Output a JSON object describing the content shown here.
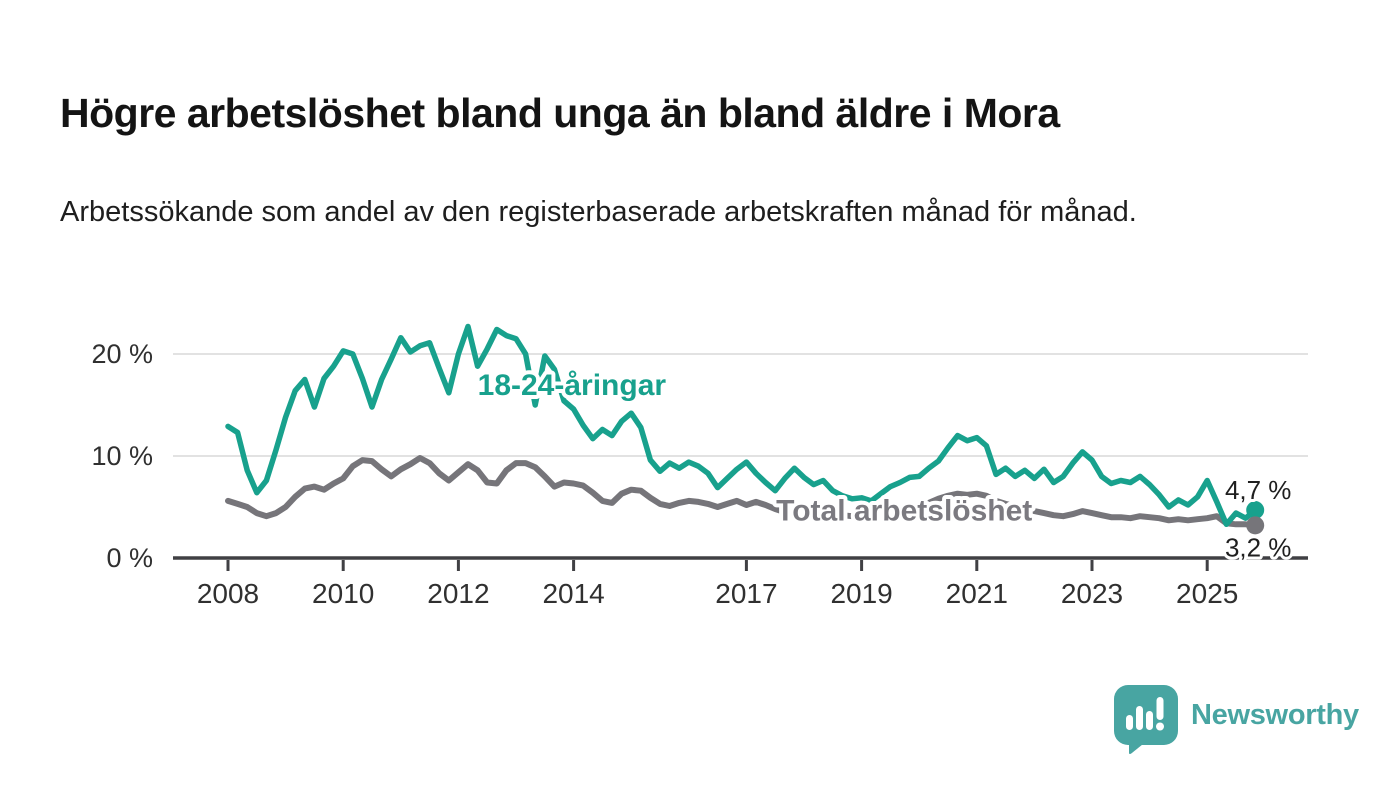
{
  "header": {
    "title": "Högre arbetslöshet bland unga än bland äldre i Mora",
    "subtitle": "Arbetssökande som andel av den registerbaserade arbetskraften månad för månad."
  },
  "chart_data": {
    "type": "line",
    "unit": "%",
    "x_start_year": 2008,
    "x_step_months": 2,
    "x_end_approx": "2025-10",
    "ylim": [
      0,
      24
    ],
    "grid": "horizontal",
    "gridline_color": "#d8d8d8",
    "axis_color": "#404044",
    "tick_label_color": "#303030",
    "y_ticks": [
      {
        "value": 0,
        "label": "0 %"
      },
      {
        "value": 10,
        "label": "10 %"
      },
      {
        "value": 20,
        "label": "20 %"
      }
    ],
    "x_ticks": [
      {
        "year": 2008,
        "label": "2008"
      },
      {
        "year": 2010,
        "label": "2010"
      },
      {
        "year": 2012,
        "label": "2012"
      },
      {
        "year": 2014,
        "label": "2014"
      },
      {
        "year": 2017,
        "label": "2017"
      },
      {
        "year": 2019,
        "label": "2019"
      },
      {
        "year": 2021,
        "label": "2021"
      },
      {
        "year": 2023,
        "label": "2023"
      },
      {
        "year": 2025,
        "label": "2025"
      }
    ],
    "series": [
      {
        "name": "18-24-åringar",
        "color": "#18a18d",
        "line_width": 5.5,
        "end_value": 4.7,
        "end_value_label": "4,7 %",
        "values": [
          12.9,
          12.3,
          8.6,
          6.4,
          7.6,
          10.6,
          13.8,
          16.4,
          17.5,
          14.8,
          17.6,
          18.8,
          20.3,
          20.0,
          17.6,
          14.8,
          17.5,
          19.5,
          21.6,
          20.2,
          20.8,
          21.1,
          18.6,
          16.2,
          20.0,
          22.7,
          18.8,
          20.5,
          22.4,
          21.8,
          21.5,
          20.0,
          15.0,
          19.8,
          18.5,
          15.4,
          14.6,
          13.0,
          11.7,
          12.6,
          12.0,
          13.4,
          14.2,
          12.8,
          9.6,
          8.5,
          9.3,
          8.8,
          9.4,
          9.0,
          8.3,
          6.9,
          7.8,
          8.7,
          9.4,
          8.3,
          7.4,
          6.6,
          7.8,
          8.8,
          7.9,
          7.2,
          7.6,
          6.6,
          6.1,
          5.8,
          5.9,
          5.6,
          6.3,
          7.0,
          7.4,
          7.9,
          8.0,
          8.8,
          9.5,
          10.8,
          12.0,
          11.5,
          11.8,
          11.0,
          8.2,
          8.8,
          8.0,
          8.6,
          7.8,
          8.7,
          7.4,
          8.0,
          9.3,
          10.4,
          9.6,
          8.0,
          7.3,
          7.6,
          7.4,
          8.0,
          7.2,
          6.2,
          5.0,
          5.7,
          5.2,
          6.0,
          7.6,
          5.5,
          3.3,
          4.4,
          3.9,
          4.7
        ]
      },
      {
        "name": "Total arbetslöshet",
        "color": "#76757a",
        "line_width": 6,
        "end_value": 3.2,
        "end_value_label": "3,2 %",
        "values": [
          5.6,
          5.3,
          5.0,
          4.4,
          4.1,
          4.4,
          5.0,
          6.0,
          6.8,
          7.0,
          6.7,
          7.3,
          7.8,
          9.0,
          9.6,
          9.5,
          8.7,
          8.0,
          8.7,
          9.2,
          9.8,
          9.3,
          8.3,
          7.6,
          8.4,
          9.2,
          8.6,
          7.4,
          7.3,
          8.6,
          9.3,
          9.3,
          8.9,
          8.0,
          7.0,
          7.4,
          7.3,
          7.1,
          6.4,
          5.6,
          5.4,
          6.3,
          6.7,
          6.6,
          5.9,
          5.3,
          5.1,
          5.4,
          5.6,
          5.5,
          5.3,
          5.0,
          5.3,
          5.6,
          5.2,
          5.5,
          5.2,
          4.8,
          4.5,
          4.4,
          4.6,
          4.9,
          4.7,
          4.4,
          4.2,
          4.1,
          4.2,
          4.3,
          4.4,
          4.5,
          4.6,
          4.8,
          5.0,
          5.4,
          5.8,
          6.1,
          6.3,
          6.2,
          6.3,
          6.1,
          5.6,
          5.3,
          5.1,
          4.9,
          4.6,
          4.4,
          4.2,
          4.1,
          4.3,
          4.6,
          4.4,
          4.2,
          4.0,
          4.0,
          3.9,
          4.1,
          4.0,
          3.9,
          3.7,
          3.8,
          3.7,
          3.8,
          3.9,
          4.1,
          3.4,
          3.3,
          3.3,
          3.2
        ]
      }
    ],
    "annotations": [
      {
        "text": "18-24-åringar",
        "year": 2013.97,
        "value": 16.9,
        "color": "#18a18d"
      },
      {
        "text": "Total arbetslöshet",
        "year": 2019.74,
        "value": 4.6,
        "color": "#7b7a80"
      }
    ],
    "value_label_color": "#1f1f1f"
  },
  "footer": {
    "brand": "Newsworthy",
    "brand_color": "#48a5a2"
  }
}
